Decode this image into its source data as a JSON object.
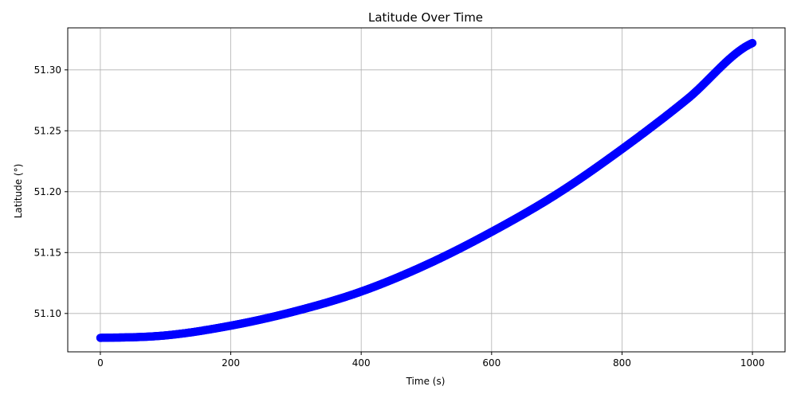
{
  "chart_data": {
    "type": "scatter",
    "title": "Latitude Over Time",
    "xlabel": "Time (s)",
    "ylabel": "Latitude (°)",
    "xlim": [
      -50,
      1050
    ],
    "ylim": [
      51.0685,
      51.3345
    ],
    "xticks": [
      0,
      200,
      400,
      600,
      800,
      1000
    ],
    "yticks": [
      51.1,
      51.15,
      51.2,
      51.25,
      51.3
    ],
    "ytick_labels": [
      "51.10",
      "51.15",
      "51.20",
      "51.25",
      "51.30"
    ],
    "grid": true,
    "series": [
      {
        "color": "#0000ff",
        "x_range": [
          0,
          1000
        ],
        "points": [
          {
            "x": 0,
            "y": 51.08
          },
          {
            "x": 100,
            "y": 51.082
          },
          {
            "x": 200,
            "y": 51.09
          },
          {
            "x": 300,
            "y": 51.102
          },
          {
            "x": 400,
            "y": 51.118
          },
          {
            "x": 500,
            "y": 51.14
          },
          {
            "x": 600,
            "y": 51.167
          },
          {
            "x": 700,
            "y": 51.198
          },
          {
            "x": 800,
            "y": 51.235
          },
          {
            "x": 900,
            "y": 51.276
          },
          {
            "x": 1000,
            "y": 51.322
          }
        ]
      }
    ]
  }
}
